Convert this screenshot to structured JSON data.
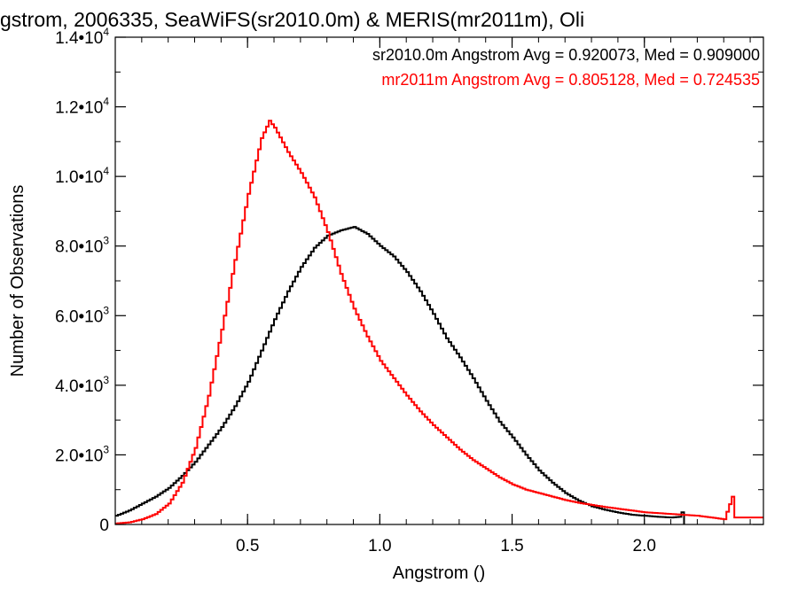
{
  "chart_data": {
    "type": "line",
    "title": "gstrom, 2006335, SeaWiFS(sr2010.0m) & MERIS(mr2011m), Oli",
    "xlabel": "Angstrom ()",
    "ylabel": "Number of Observations",
    "xlim": [
      0.0,
      2.45
    ],
    "ylim": [
      0,
      14000
    ],
    "x_ticks": [
      {
        "value": 0.5,
        "label": "0.5"
      },
      {
        "value": 1.0,
        "label": "1.0"
      },
      {
        "value": 1.5,
        "label": "1.5"
      },
      {
        "value": 2.0,
        "label": "2.0"
      }
    ],
    "y_ticks": [
      {
        "value": 0,
        "mant": "0",
        "exp": ""
      },
      {
        "value": 2000,
        "mant": "2.0•10",
        "exp": "3"
      },
      {
        "value": 4000,
        "mant": "4.0•10",
        "exp": "3"
      },
      {
        "value": 6000,
        "mant": "6.0•10",
        "exp": "3"
      },
      {
        "value": 8000,
        "mant": "8.0•10",
        "exp": "3"
      },
      {
        "value": 10000,
        "mant": "1.0•10",
        "exp": "4"
      },
      {
        "value": 12000,
        "mant": "1.2•10",
        "exp": "4"
      },
      {
        "value": 14000,
        "mant": "1.4•10",
        "exp": "4"
      }
    ],
    "legend": [
      {
        "text": "sr2010.0m Angstrom Avg = 0.920073, Med = 0.909000",
        "color": "#000000"
      },
      {
        "text": "mr2011m Angstrom Avg = 0.805128, Med = 0.724535",
        "color": "#ff0000"
      }
    ],
    "legend_position": "top-right",
    "grid": false,
    "series": [
      {
        "color": "#000000",
        "x": [
          0.0,
          0.05,
          0.1,
          0.15,
          0.2,
          0.25,
          0.3,
          0.35,
          0.4,
          0.45,
          0.5,
          0.55,
          0.6,
          0.65,
          0.7,
          0.75,
          0.8,
          0.85,
          0.9,
          0.95,
          1.0,
          1.05,
          1.1,
          1.15,
          1.2,
          1.25,
          1.3,
          1.35,
          1.4,
          1.45,
          1.5,
          1.55,
          1.6,
          1.65,
          1.7,
          1.75,
          1.8,
          1.85,
          1.9,
          1.95,
          2.0,
          2.05,
          2.1,
          2.13,
          2.14,
          2.15
        ],
        "values": [
          250,
          400,
          600,
          800,
          1050,
          1400,
          1800,
          2300,
          2800,
          3400,
          4100,
          5000,
          5900,
          6700,
          7400,
          7950,
          8300,
          8450,
          8550,
          8350,
          8000,
          7700,
          7250,
          6700,
          6050,
          5350,
          4800,
          4200,
          3550,
          2950,
          2500,
          2000,
          1550,
          1200,
          900,
          680,
          520,
          420,
          340,
          280,
          250,
          220,
          200,
          220,
          350,
          0
        ]
      },
      {
        "color": "#ff0000",
        "x": [
          0.0,
          0.05,
          0.1,
          0.15,
          0.2,
          0.25,
          0.3,
          0.35,
          0.4,
          0.45,
          0.5,
          0.55,
          0.58,
          0.6,
          0.65,
          0.7,
          0.75,
          0.8,
          0.85,
          0.9,
          0.95,
          1.0,
          1.05,
          1.1,
          1.15,
          1.2,
          1.25,
          1.3,
          1.35,
          1.4,
          1.45,
          1.5,
          1.55,
          1.6,
          1.65,
          1.7,
          1.75,
          1.8,
          1.85,
          1.9,
          1.95,
          2.0,
          2.1,
          2.2,
          2.3,
          2.33,
          2.34,
          2.45
        ],
        "values": [
          30,
          60,
          150,
          300,
          600,
          1200,
          2200,
          3700,
          5600,
          7600,
          9500,
          11100,
          11600,
          11400,
          10700,
          10100,
          9400,
          8400,
          7200,
          6200,
          5400,
          4700,
          4200,
          3700,
          3250,
          2850,
          2500,
          2150,
          1850,
          1600,
          1350,
          1150,
          1000,
          900,
          800,
          700,
          620,
          560,
          500,
          450,
          400,
          350,
          300,
          250,
          150,
          800,
          200,
          200
        ]
      }
    ]
  }
}
